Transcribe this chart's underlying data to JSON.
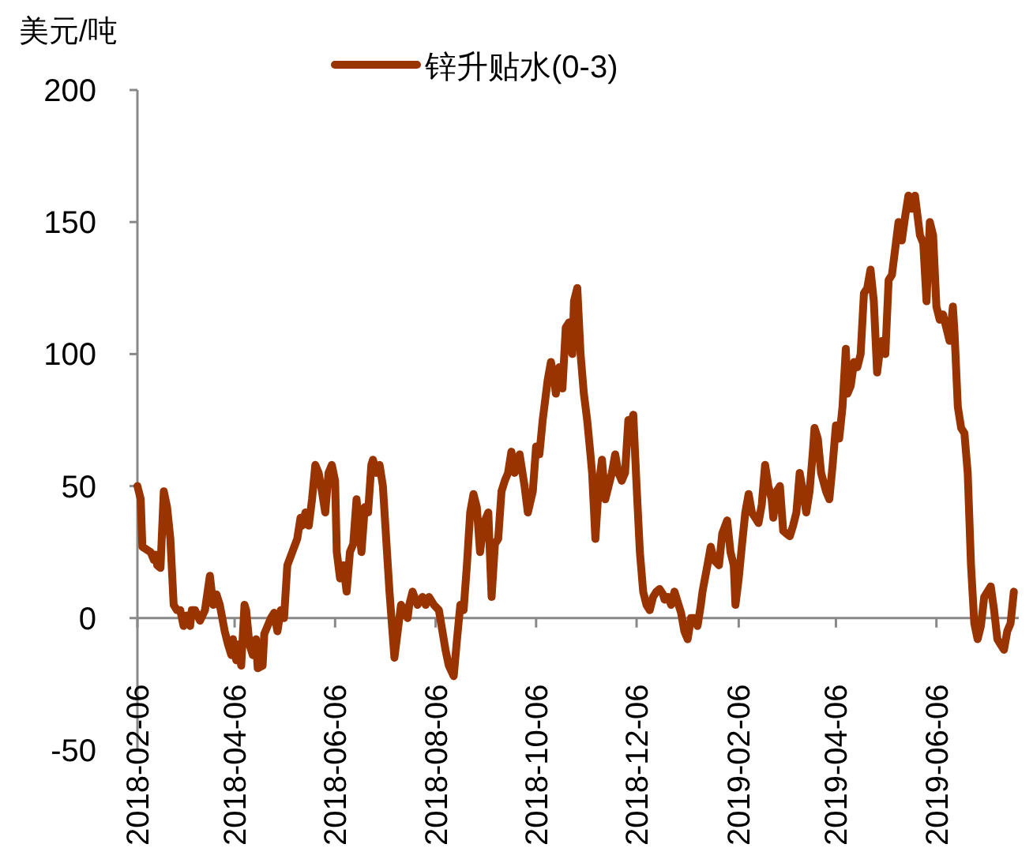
{
  "chart_data": {
    "type": "line",
    "ylabel": "美元/吨",
    "legend": "top",
    "xlim": [
      "2018-02-06",
      "2019-07-26"
    ],
    "xticks": [
      "2018-02-06",
      "2018-04-06",
      "2018-06-06",
      "2018-08-06",
      "2018-10-06",
      "2018-12-06",
      "2019-02-06",
      "2019-04-06",
      "2019-06-06"
    ],
    "ylim": [
      -50,
      200
    ],
    "yticks": [
      -50,
      0,
      50,
      100,
      150,
      200
    ],
    "grid": false,
    "marker": "none",
    "line_style": "solid",
    "x": [
      "2018-02-06",
      "2018-02-08",
      "2018-02-09",
      "2018-02-14",
      "2018-02-16",
      "2018-02-17",
      "2018-02-18",
      "2018-02-20",
      "2018-02-22",
      "2018-02-24",
      "2018-02-26",
      "2018-02-28",
      "2018-03-02",
      "2018-03-04",
      "2018-03-06",
      "2018-03-08",
      "2018-03-10",
      "2018-03-11",
      "2018-03-13",
      "2018-03-16",
      "2018-03-19",
      "2018-03-22",
      "2018-03-24",
      "2018-03-26",
      "2018-03-28",
      "2018-03-31",
      "2018-04-02",
      "2018-04-04",
      "2018-04-05",
      "2018-04-07",
      "2018-04-08",
      "2018-04-10",
      "2018-04-12",
      "2018-04-13",
      "2018-04-15",
      "2018-04-17",
      "2018-04-19",
      "2018-04-20",
      "2018-04-23",
      "2018-04-24",
      "2018-04-26",
      "2018-04-28",
      "2018-04-30",
      "2018-05-02",
      "2018-05-04",
      "2018-05-06",
      "2018-05-08",
      "2018-05-11",
      "2018-05-14",
      "2018-05-16",
      "2018-05-17",
      "2018-05-19",
      "2018-05-21",
      "2018-05-23",
      "2018-05-25",
      "2018-05-27",
      "2018-05-29",
      "2018-05-31",
      "2018-06-02",
      "2018-06-04",
      "2018-06-06",
      "2018-06-07",
      "2018-06-09",
      "2018-06-11",
      "2018-06-13",
      "2018-06-15",
      "2018-06-17",
      "2018-06-19",
      "2018-06-22",
      "2018-06-24",
      "2018-06-26",
      "2018-06-28",
      "2018-06-29",
      "2018-07-01",
      "2018-07-03",
      "2018-07-05",
      "2018-07-07",
      "2018-07-09",
      "2018-07-12",
      "2018-07-14",
      "2018-07-16",
      "2018-07-20",
      "2018-07-21",
      "2018-07-23",
      "2018-07-26",
      "2018-07-29",
      "2018-07-31",
      "2018-08-02",
      "2018-08-05",
      "2018-08-08",
      "2018-08-12",
      "2018-08-14",
      "2018-08-17",
      "2018-08-19",
      "2018-08-21",
      "2018-08-23",
      "2018-08-25",
      "2018-08-27",
      "2018-08-29",
      "2018-08-31",
      "2018-09-02",
      "2018-09-03",
      "2018-09-05",
      "2018-09-07",
      "2018-09-09",
      "2018-09-11",
      "2018-09-13",
      "2018-09-15",
      "2018-09-17",
      "2018-09-19",
      "2018-09-21",
      "2018-09-23",
      "2018-09-25",
      "2018-09-26",
      "2018-09-29",
      "2018-10-01",
      "2018-10-04",
      "2018-10-06",
      "2018-10-08",
      "2018-10-10",
      "2018-10-13",
      "2018-10-15",
      "2018-10-17",
      "2018-10-18",
      "2018-10-20",
      "2018-10-22",
      "2018-10-24",
      "2018-10-26",
      "2018-10-28",
      "2018-10-29",
      "2018-10-31",
      "2018-11-02",
      "2018-11-04",
      "2018-11-06",
      "2018-11-08",
      "2018-11-09",
      "2018-11-11",
      "2018-11-13",
      "2018-11-15",
      "2018-11-17",
      "2018-11-19",
      "2018-11-21",
      "2018-11-23",
      "2018-11-25",
      "2018-11-27",
      "2018-11-29",
      "2018-12-01",
      "2018-12-02",
      "2018-12-04",
      "2018-12-06",
      "2018-12-08",
      "2018-12-10",
      "2018-12-12",
      "2018-12-14",
      "2018-12-16",
      "2018-12-18",
      "2018-12-20",
      "2018-12-22",
      "2018-12-23",
      "2018-12-25",
      "2018-12-27",
      "2018-12-29",
      "2018-12-31",
      "2019-01-02",
      "2019-01-04",
      "2019-01-06",
      "2019-01-08",
      "2019-01-10",
      "2019-01-12",
      "2019-01-14",
      "2019-01-15",
      "2019-01-18",
      "2019-01-20",
      "2019-01-22",
      "2019-01-25",
      "2019-01-27",
      "2019-01-30",
      "2019-02-01",
      "2019-02-03",
      "2019-02-04",
      "2019-02-06",
      "2019-02-08",
      "2019-02-10",
      "2019-02-12",
      "2019-02-14",
      "2019-02-16",
      "2019-02-18",
      "2019-02-20",
      "2019-02-22",
      "2019-02-24",
      "2019-02-26",
      "2019-02-27",
      "2019-03-01",
      "2019-03-03",
      "2019-03-05",
      "2019-03-07",
      "2019-03-09",
      "2019-03-11",
      "2019-03-13",
      "2019-03-15",
      "2019-03-17",
      "2019-03-19",
      "2019-03-21",
      "2019-03-23",
      "2019-03-24",
      "2019-03-26",
      "2019-03-28",
      "2019-03-31",
      "2019-04-02",
      "2019-04-04",
      "2019-04-06",
      "2019-04-08",
      "2019-04-10",
      "2019-04-12",
      "2019-04-13",
      "2019-04-15",
      "2019-04-17",
      "2019-04-19",
      "2019-04-21",
      "2019-04-23",
      "2019-04-25",
      "2019-04-27",
      "2019-04-29",
      "2019-05-01",
      "2019-05-03",
      "2019-05-04",
      "2019-05-06",
      "2019-05-08",
      "2019-05-10",
      "2019-05-12",
      "2019-05-14",
      "2019-05-16",
      "2019-05-18",
      "2019-05-20",
      "2019-05-22",
      "2019-05-24",
      "2019-05-26",
      "2019-05-27",
      "2019-05-29",
      "2019-05-31",
      "2019-06-02",
      "2019-06-04",
      "2019-06-06",
      "2019-06-08",
      "2019-06-10",
      "2019-06-12",
      "2019-06-14",
      "2019-06-16",
      "2019-06-17",
      "2019-06-19",
      "2019-06-21",
      "2019-06-23",
      "2019-06-25",
      "2019-06-27",
      "2019-06-29",
      "2019-07-01",
      "2019-07-03",
      "2019-07-05",
      "2019-07-07",
      "2019-07-09",
      "2019-07-11",
      "2019-07-13",
      "2019-07-15",
      "2019-07-17",
      "2019-07-19",
      "2019-07-21",
      "2019-07-23"
    ],
    "series": [
      {
        "name": "锌升贴水(0-3)",
        "color": "#993300",
        "values": [
          50,
          45,
          27,
          25,
          22,
          24,
          20,
          19,
          48,
          42,
          30,
          5,
          3,
          3,
          -3,
          1,
          -3,
          3,
          3,
          -1,
          3,
          16,
          5,
          9,
          5,
          -5,
          -10,
          -14,
          -8,
          -16,
          -10,
          -18,
          5,
          3,
          -10,
          -14,
          -8,
          -19,
          -18,
          -6,
          -3,
          0,
          2,
          -5,
          3,
          0,
          20,
          25,
          30,
          38,
          35,
          40,
          35,
          45,
          58,
          55,
          48,
          40,
          55,
          58,
          52,
          25,
          15,
          20,
          10,
          25,
          28,
          45,
          25,
          42,
          40,
          58,
          60,
          55,
          58,
          50,
          30,
          10,
          -15,
          -5,
          5,
          0,
          5,
          10,
          5,
          8,
          5,
          8,
          5,
          3,
          -12,
          -18,
          -22,
          -8,
          5,
          3,
          20,
          40,
          47,
          42,
          25,
          30,
          37,
          40,
          8,
          28,
          30,
          48,
          52,
          55,
          63,
          55,
          58,
          62,
          50,
          40,
          48,
          65,
          62,
          75,
          90,
          97,
          90,
          85,
          95,
          87,
          110,
          112,
          100,
          120,
          125,
          100,
          85,
          75,
          62,
          55,
          30,
          50,
          60,
          45,
          50,
          55,
          62,
          55,
          52,
          55,
          75,
          72,
          77,
          50,
          25,
          10,
          5,
          3,
          8,
          10,
          11,
          9,
          7,
          8,
          5,
          10,
          6,
          2,
          -5,
          -8,
          0,
          0,
          -3,
          5,
          10,
          20,
          27,
          22,
          20,
          32,
          37,
          25,
          20,
          5,
          15,
          28,
          40,
          47,
          40,
          38,
          36,
          43,
          58,
          50,
          45,
          38,
          48,
          50,
          33,
          32,
          31,
          35,
          40,
          55,
          48,
          40,
          48,
          63,
          72,
          68,
          55,
          48,
          45,
          58,
          73,
          68,
          80,
          102,
          85,
          88,
          97,
          95,
          100,
          123,
          125,
          132,
          120,
          93,
          103,
          105,
          100,
          128,
          130,
          140,
          150,
          143,
          152,
          160,
          155,
          160,
          150,
          145,
          142,
          120,
          150,
          145,
          118,
          113,
          115,
          110,
          105,
          118,
          108,
          80,
          72,
          70,
          55,
          20,
          -2,
          -8,
          -3,
          8,
          10,
          12,
          3,
          -8,
          -10,
          -12,
          -5,
          -2,
          10
        ]
      }
    ]
  }
}
